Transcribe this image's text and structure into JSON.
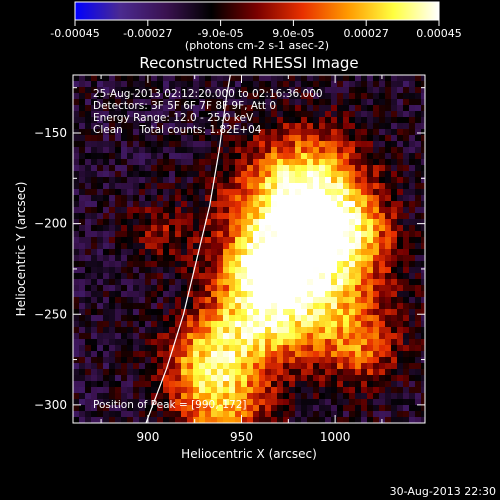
{
  "chart_data": {
    "type": "heatmap",
    "title": "Reconstructed RHESSI Image",
    "xlabel": "Heliocentric X (arcsec)",
    "ylabel": "Heliocentric Y (arcsec)",
    "xlim": [
      860,
      1048
    ],
    "ylim": [
      -310,
      -118
    ],
    "x_ticks": [
      900,
      950,
      1000
    ],
    "y_ticks": [
      -300,
      -250,
      -200,
      -150
    ],
    "colorbar": {
      "min": -0.00045,
      "max": 0.00045,
      "tick_values": [
        -0.00045,
        -0.00027,
        -9e-05,
        9e-05,
        0.00027,
        0.00045
      ],
      "tick_labels": [
        "-0.00045",
        "-0.00027",
        "-9.0e-05",
        "9.0e-05",
        "0.00027",
        "0.00045"
      ],
      "unit_label": "(photons cm-2 s-1 asec-2)",
      "colors": [
        "#0000ff",
        "#4b2a90",
        "#3a1250",
        "#000000",
        "#7a0000",
        "#e83000",
        "#ff9a00",
        "#ffff40",
        "#ffffff"
      ]
    },
    "annotations": [
      "25-Aug-2013 02:12:20.000 to 02:16:36.000",
      "Detectors: 3F 5F 6F 7F 8F 9F, Att 0",
      "Energy Range: 12.0 - 25.0 keV",
      "Clean     Total counts: 1.82E+04"
    ],
    "peak_label": "Position of Peak = [990,-172]",
    "peak": [
      990,
      -172
    ],
    "limb_curve": [
      [
        899,
        -310
      ],
      [
        910,
        -280
      ],
      [
        919,
        -250
      ],
      [
        926,
        -220
      ],
      [
        933,
        -190
      ],
      [
        938,
        -160
      ],
      [
        942,
        -130
      ],
      [
        944,
        -118
      ]
    ]
  },
  "footer": {
    "timestamp": "30-Aug-2013 22:30"
  }
}
